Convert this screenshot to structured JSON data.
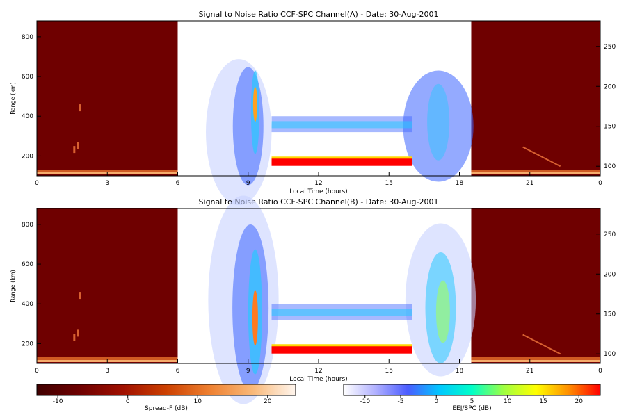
{
  "chart_data": [
    {
      "type": "heatmap",
      "title": "Signal to Noise Ratio CCF-SPC Channel(A) - Date: 30-Aug-2001",
      "xlabel": "Local Time (hours)",
      "ylabel": "Range (km)",
      "x_ticks": [
        "0",
        "3",
        "6",
        "9",
        "12",
        "15",
        "18",
        "21",
        "0"
      ],
      "x_tick_hours": [
        0,
        3,
        6,
        9,
        12,
        15,
        18,
        21,
        24
      ],
      "y_ticks": [
        200,
        400,
        600,
        800
      ],
      "y2_ticks": [
        100,
        150,
        200,
        250
      ],
      "xlim": [
        0,
        24
      ],
      "ylim": [
        100,
        880
      ],
      "ylim_right": [
        88,
        282
      ],
      "spreadf_segments": [
        [
          0,
          6
        ],
        [
          18.5,
          24
        ]
      ],
      "eej_segment": [
        6,
        18.5
      ],
      "features": {
        "low_range_band": [
          10,
          16,
          150,
          190
        ],
        "mid_band": [
          10,
          16,
          320,
          400
        ]
      }
    },
    {
      "type": "heatmap",
      "title": "Signal to Noise Ratio CCF-SPC Channel(B) - Date: 30-Aug-2001",
      "xlabel": "Local Time (hours)",
      "ylabel": "Range (km)",
      "x_ticks": [
        "0",
        "3",
        "6",
        "9",
        "12",
        "15",
        "18",
        "21",
        "0"
      ],
      "x_tick_hours": [
        0,
        3,
        6,
        9,
        12,
        15,
        18,
        21,
        24
      ],
      "y_ticks": [
        200,
        400,
        600,
        800
      ],
      "y2_ticks": [
        100,
        150,
        200,
        250
      ],
      "xlim": [
        0,
        24
      ],
      "ylim": [
        100,
        880
      ],
      "ylim_right": [
        88,
        282
      ],
      "spreadf_segments": [
        [
          0,
          6
        ],
        [
          18.5,
          24
        ]
      ],
      "eej_segment": [
        6,
        18.5
      ],
      "features": {
        "low_range_band": [
          10,
          16,
          150,
          190
        ],
        "mid_band": [
          10,
          16,
          320,
          400
        ]
      }
    }
  ],
  "colorbars": [
    {
      "label": "Spread-F (dB)",
      "ticks": [
        -10,
        0,
        10,
        20
      ],
      "range": [
        -13,
        24
      ],
      "colors": [
        "#400000",
        "#6e0000",
        "#a01000",
        "#cc4000",
        "#ee8030",
        "#f9b878",
        "#fff6ee"
      ]
    },
    {
      "label": "EEJ/SPC (dB)",
      "ticks": [
        -10,
        -5,
        0,
        5,
        10,
        15,
        20
      ],
      "range": [
        -13,
        23
      ],
      "colors": [
        "#ffffff",
        "#b0b0ff",
        "#4a5cff",
        "#00c8ff",
        "#00ffc8",
        "#a0ff40",
        "#ffff00",
        "#ff9000",
        "#ff0000"
      ]
    }
  ],
  "colors": {
    "spreadf_background": "#6f0000"
  }
}
